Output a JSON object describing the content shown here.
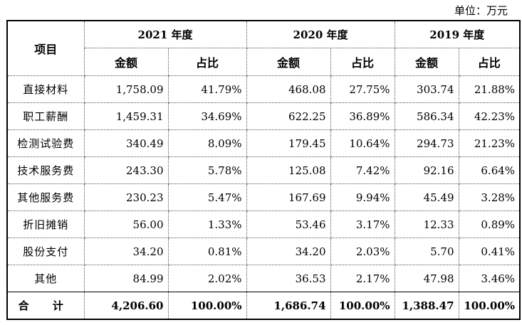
{
  "unit_label": "单位：万元",
  "header": {
    "item": "项目",
    "years": [
      "2021 年度",
      "2020 年度",
      "2019 年度"
    ],
    "amount": "金额",
    "ratio": "占比"
  },
  "rows": [
    {
      "name": "直接材料",
      "v": [
        "1,758.09",
        "41.79%",
        "468.08",
        "27.75%",
        "303.74",
        "21.88%"
      ]
    },
    {
      "name": "职工薪酬",
      "v": [
        "1,459.31",
        "34.69%",
        "622.25",
        "36.89%",
        "586.34",
        "42.23%"
      ]
    },
    {
      "name": "检测试验费",
      "v": [
        "340.49",
        "8.09%",
        "179.45",
        "10.64%",
        "294.73",
        "21.23%"
      ]
    },
    {
      "name": "技术服务费",
      "v": [
        "243.30",
        "5.78%",
        "125.08",
        "7.42%",
        "92.16",
        "6.64%"
      ]
    },
    {
      "name": "其他服务费",
      "v": [
        "230.23",
        "5.47%",
        "167.69",
        "9.94%",
        "45.49",
        "3.28%"
      ]
    },
    {
      "name": "折旧摊销",
      "v": [
        "56.00",
        "1.33%",
        "53.46",
        "3.17%",
        "12.33",
        "0.89%"
      ]
    },
    {
      "name": "股份支付",
      "v": [
        "34.20",
        "0.81%",
        "34.20",
        "2.03%",
        "5.70",
        "0.41%"
      ]
    },
    {
      "name": "其他",
      "v": [
        "84.99",
        "2.02%",
        "36.53",
        "2.17%",
        "47.98",
        "3.46%"
      ]
    }
  ],
  "total": {
    "name": "合 计",
    "v": [
      "4,206.60",
      "100.00%",
      "1,686.74",
      "100.00%",
      "1,388.47",
      "100.00%"
    ]
  }
}
